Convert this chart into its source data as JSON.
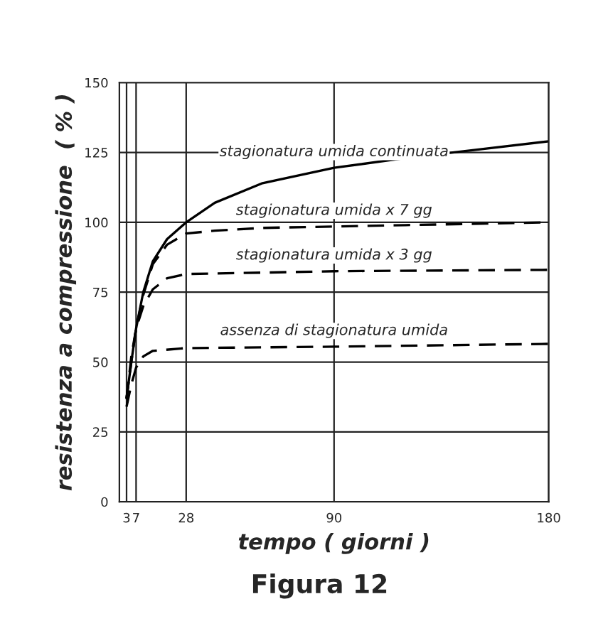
{
  "chart_data": {
    "type": "line",
    "title": "Figura 12",
    "xlabel": "tempo ( giorni )",
    "ylabel": "resistenza a compressione  ( % )",
    "xlim": [
      0,
      180
    ],
    "xticks": [
      3,
      7,
      28,
      90,
      180
    ],
    "ylim": [
      0,
      150
    ],
    "yticks": [
      0,
      25,
      50,
      75,
      100,
      125,
      150
    ],
    "grid": true,
    "legend": false,
    "marker": "none",
    "series": [
      {
        "name": "stagionatura umida continuata",
        "color": "#000000",
        "line_style": "solid",
        "x": [
          3,
          5,
          7,
          10,
          14,
          20,
          28,
          40,
          60,
          90,
          120,
          150,
          180
        ],
        "values": [
          37,
          50,
          62,
          75,
          86,
          94,
          100,
          107,
          114,
          119.5,
          123,
          126,
          129
        ]
      },
      {
        "name": "stagionatura umida x 7 gg",
        "color": "#000000",
        "line_style": "dashed",
        "x": [
          3,
          5,
          7,
          10,
          14,
          20,
          28,
          40,
          60,
          90,
          120,
          180
        ],
        "values": [
          37,
          50,
          62,
          74,
          85,
          92,
          96,
          97,
          98,
          98.5,
          99,
          100
        ]
      },
      {
        "name": "stagionatura umida x 3 gg",
        "color": "#000000",
        "line_style": "dashed",
        "x": [
          3,
          5,
          7,
          10,
          14,
          20,
          28,
          60,
          90,
          180
        ],
        "values": [
          37,
          52,
          62,
          70,
          76,
          80,
          81.5,
          82,
          82.5,
          83
        ]
      },
      {
        "name": "assenza di stagionatura umida",
        "color": "#000000",
        "line_style": "dashed",
        "x": [
          3,
          5,
          7,
          10,
          14,
          28,
          90,
          180
        ],
        "values": [
          34,
          42,
          48,
          52,
          54,
          55,
          55.5,
          56.5
        ]
      }
    ]
  }
}
